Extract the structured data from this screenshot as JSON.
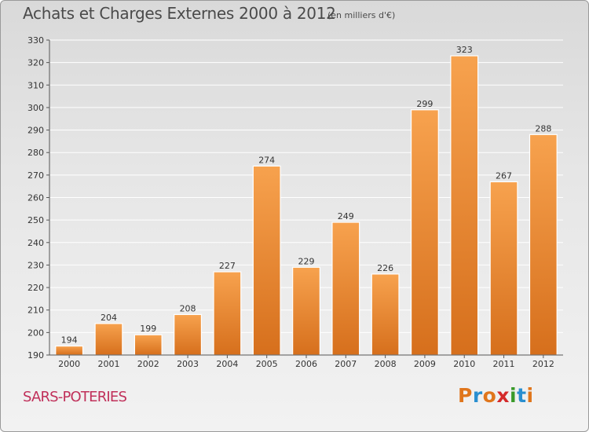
{
  "header": {
    "title": "Achats et Charges Externes 2000 à 2012",
    "subtitle": "(en milliers d'€)"
  },
  "footer": {
    "town": "SARS-POTERIES",
    "logo": {
      "letters": [
        "P",
        "r",
        "o",
        "x",
        "i",
        "t",
        "i"
      ],
      "colors": [
        "#e0761c",
        "#2a8fd0",
        "#e0761c",
        "#d42a2a",
        "#3a9a2a",
        "#2a8fd0",
        "#e0761c"
      ]
    }
  },
  "chart_data": {
    "type": "bar",
    "categories": [
      "2000",
      "2001",
      "2002",
      "2003",
      "2004",
      "2005",
      "2006",
      "2007",
      "2008",
      "2009",
      "2010",
      "2011",
      "2012"
    ],
    "values": [
      194,
      204,
      199,
      208,
      227,
      274,
      229,
      249,
      226,
      299,
      323,
      267,
      288
    ],
    "ylim": [
      190,
      330
    ],
    "yticks": [
      190,
      200,
      210,
      220,
      230,
      240,
      250,
      260,
      270,
      280,
      290,
      300,
      310,
      320,
      330
    ],
    "grid": true,
    "data_labels": true,
    "bar_color": "#e8802a"
  }
}
